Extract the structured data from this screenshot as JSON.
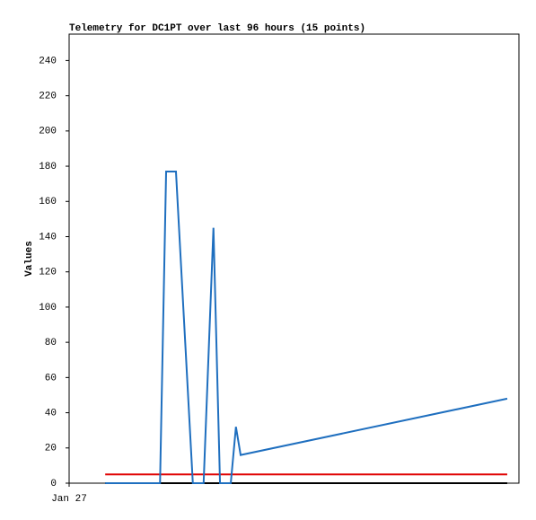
{
  "chart_data": {
    "type": "line",
    "title": "Telemetry for DC1PT over last 96 hours (15 points)",
    "y_label": "Values",
    "xlim": [
      0,
      96
    ],
    "xticks": [
      {
        "value": 0,
        "label": "Jan 27"
      }
    ],
    "ylim": [
      0,
      255
    ],
    "yticks": [
      0,
      20,
      40,
      60,
      80,
      100,
      120,
      140,
      160,
      180,
      200,
      220,
      240
    ],
    "grid": false,
    "series": [
      {
        "color": "#1f6fbf",
        "x": [
          7.7,
          19.4,
          20.7,
          22.8,
          26.4,
          28.7,
          30.8,
          32.2,
          34.5,
          35.6,
          36.6,
          93.5
        ],
        "values": [
          0,
          0,
          177,
          177,
          0,
          0,
          145,
          0,
          0,
          32,
          16,
          48
        ]
      },
      {
        "color": "#e00000",
        "x": [
          7.7,
          93.5
        ],
        "values": [
          5,
          5
        ]
      },
      {
        "color": "#000000",
        "x": [
          7.7,
          93.5
        ],
        "values": [
          0,
          0
        ]
      }
    ]
  }
}
